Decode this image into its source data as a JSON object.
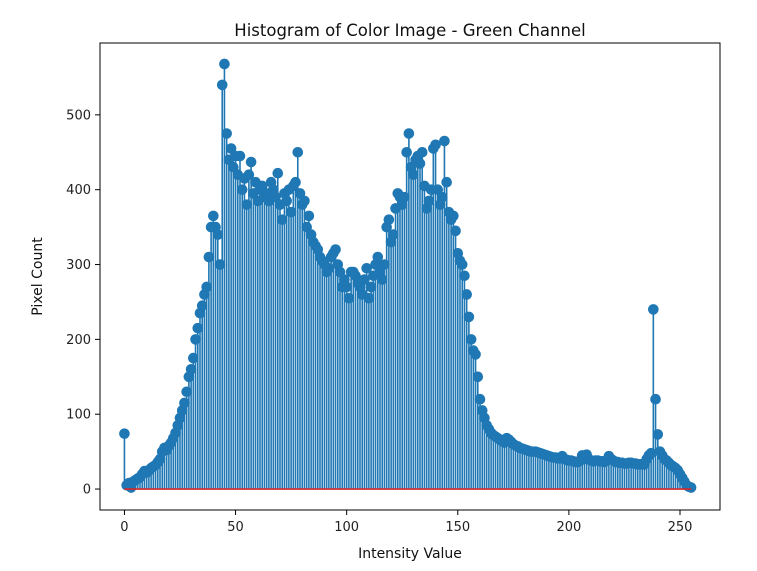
{
  "chart_data": {
    "type": "stem",
    "title": "Histogram of Color Image - Green Channel",
    "xlabel": "Intensity Value",
    "ylabel": "Pixel Count",
    "xlim": [
      -11,
      268
    ],
    "ylim": [
      -28,
      596
    ],
    "x_ticks": [
      0,
      50,
      100,
      150,
      200,
      250
    ],
    "y_ticks": [
      0,
      100,
      200,
      300,
      400,
      500
    ],
    "grid": false,
    "legend": "none",
    "colors": {
      "stem": "#1f77b4",
      "baseline": "#d62728",
      "axes": "#000000"
    },
    "x": [
      0,
      1,
      2,
      3,
      4,
      5,
      6,
      7,
      8,
      9,
      10,
      11,
      12,
      13,
      14,
      15,
      16,
      17,
      18,
      19,
      20,
      21,
      22,
      23,
      24,
      25,
      26,
      27,
      28,
      29,
      30,
      31,
      32,
      33,
      34,
      35,
      36,
      37,
      38,
      39,
      40,
      41,
      42,
      43,
      44,
      45,
      46,
      47,
      48,
      49,
      50,
      51,
      52,
      53,
      54,
      55,
      56,
      57,
      58,
      59,
      60,
      61,
      62,
      63,
      64,
      65,
      66,
      67,
      68,
      69,
      70,
      71,
      72,
      73,
      74,
      75,
      76,
      77,
      78,
      79,
      80,
      81,
      82,
      83,
      84,
      85,
      86,
      87,
      88,
      89,
      90,
      91,
      92,
      93,
      94,
      95,
      96,
      97,
      98,
      99,
      100,
      101,
      102,
      103,
      104,
      105,
      106,
      107,
      108,
      109,
      110,
      111,
      112,
      113,
      114,
      115,
      116,
      117,
      118,
      119,
      120,
      121,
      122,
      123,
      124,
      125,
      126,
      127,
      128,
      129,
      130,
      131,
      132,
      133,
      134,
      135,
      136,
      137,
      138,
      139,
      140,
      141,
      142,
      143,
      144,
      145,
      146,
      147,
      148,
      149,
      150,
      151,
      152,
      153,
      154,
      155,
      156,
      157,
      158,
      159,
      160,
      161,
      162,
      163,
      164,
      165,
      166,
      167,
      168,
      169,
      170,
      171,
      172,
      173,
      174,
      175,
      176,
      177,
      178,
      179,
      180,
      181,
      182,
      183,
      184,
      185,
      186,
      187,
      188,
      189,
      190,
      191,
      192,
      193,
      194,
      195,
      196,
      197,
      198,
      199,
      200,
      201,
      202,
      203,
      204,
      205,
      206,
      207,
      208,
      209,
      210,
      211,
      212,
      213,
      214,
      215,
      216,
      217,
      218,
      219,
      220,
      221,
      222,
      223,
      224,
      225,
      226,
      227,
      228,
      229,
      230,
      231,
      232,
      233,
      234,
      235,
      236,
      237,
      238,
      239,
      240,
      241,
      242,
      243,
      244,
      245,
      246,
      247,
      248,
      249,
      250,
      251,
      252,
      253,
      254,
      255
    ],
    "values": [
      74,
      5,
      8,
      2,
      10,
      12,
      14,
      16,
      20,
      24,
      22,
      25,
      28,
      30,
      32,
      36,
      40,
      50,
      55,
      52,
      58,
      62,
      68,
      75,
      85,
      95,
      105,
      115,
      130,
      150,
      160,
      175,
      200,
      215,
      235,
      245,
      260,
      270,
      310,
      350,
      365,
      350,
      340,
      300,
      540,
      568,
      475,
      440,
      455,
      430,
      445,
      420,
      445,
      400,
      415,
      380,
      420,
      437,
      395,
      410,
      385,
      400,
      405,
      390,
      395,
      385,
      410,
      400,
      390,
      422,
      380,
      360,
      395,
      385,
      400,
      370,
      405,
      410,
      450,
      395,
      380,
      385,
      350,
      365,
      340,
      330,
      325,
      320,
      310,
      305,
      300,
      290,
      295,
      310,
      315,
      320,
      300,
      290,
      270,
      280,
      270,
      255,
      290,
      290,
      285,
      275,
      270,
      260,
      280,
      295,
      255,
      270,
      285,
      300,
      310,
      290,
      280,
      300,
      350,
      360,
      330,
      340,
      375,
      395,
      390,
      380,
      390,
      450,
      475,
      430,
      420,
      440,
      445,
      435,
      450,
      405,
      375,
      385,
      400,
      455,
      460,
      400,
      380,
      390,
      465,
      410,
      370,
      360,
      365,
      345,
      315,
      305,
      300,
      285,
      260,
      230,
      200,
      185,
      180,
      150,
      120,
      105,
      95,
      85,
      80,
      75,
      72,
      70,
      68,
      66,
      64,
      62,
      68,
      66,
      63,
      60,
      58,
      57,
      55,
      54,
      53,
      52,
      51,
      50,
      50,
      50,
      49,
      48,
      47,
      46,
      45,
      44,
      43,
      42,
      42,
      41,
      41,
      44,
      40,
      39,
      38,
      38,
      37,
      36,
      36,
      38,
      45,
      40,
      46,
      40,
      38,
      37,
      38,
      38,
      37,
      37,
      36,
      38,
      44,
      40,
      38,
      36,
      36,
      35,
      35,
      34,
      34,
      35,
      35,
      34,
      34,
      33,
      33,
      33,
      33,
      40,
      45,
      48,
      240,
      120,
      73,
      50,
      45,
      40,
      38,
      35,
      32,
      30,
      28,
      25,
      20,
      15,
      10,
      5,
      3,
      2
    ]
  }
}
